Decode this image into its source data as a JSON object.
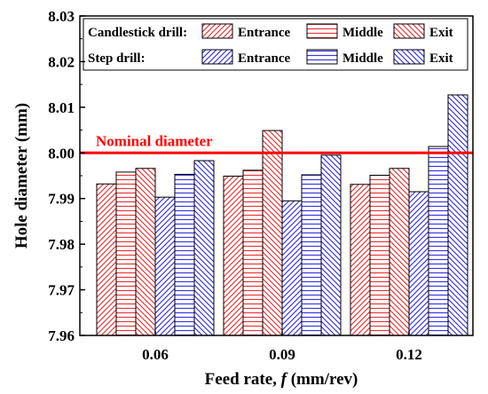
{
  "chart_data": {
    "type": "bar",
    "xlabel_prefix": "Feed rate, ",
    "xlabel_symbol": "f",
    "xlabel_suffix": " (mm/rev)",
    "ylabel": "Hole diameter (mm)",
    "ylim": [
      7.96,
      8.03
    ],
    "yticks": [
      "7.96",
      "7.97",
      "7.98",
      "7.99",
      "8.00",
      "8.01",
      "8.02",
      "8.03"
    ],
    "categories": [
      "0.06",
      "0.09",
      "0.12"
    ],
    "grid": false,
    "legend_position": "top",
    "legend_groups": [
      {
        "label": "Candlestick drill:",
        "color": "#e8393a"
      },
      {
        "label": "Step drill:",
        "color": "#3a3ae0"
      }
    ],
    "series": [
      {
        "name": "Entrance",
        "group": 0,
        "pattern": "diag-right",
        "values": [
          7.9932,
          7.9949,
          7.9931
        ]
      },
      {
        "name": "Middle",
        "group": 0,
        "pattern": "horizontal",
        "values": [
          7.9958,
          7.9962,
          7.9951
        ]
      },
      {
        "name": "Exit",
        "group": 0,
        "pattern": "diag-left",
        "values": [
          7.9966,
          8.0049,
          7.9966
        ]
      },
      {
        "name": "Entrance",
        "group": 1,
        "pattern": "diag-right",
        "values": [
          7.9903,
          7.9895,
          7.9915
        ]
      },
      {
        "name": "Middle",
        "group": 1,
        "pattern": "horizontal",
        "values": [
          7.9953,
          7.9952,
          8.0014
        ]
      },
      {
        "name": "Exit",
        "group": 1,
        "pattern": "diag-left",
        "values": [
          7.9983,
          7.9995,
          8.0127
        ]
      }
    ],
    "reference_line": {
      "label": "Nominal diameter",
      "value": 8.0,
      "color": "#ff0000"
    }
  }
}
